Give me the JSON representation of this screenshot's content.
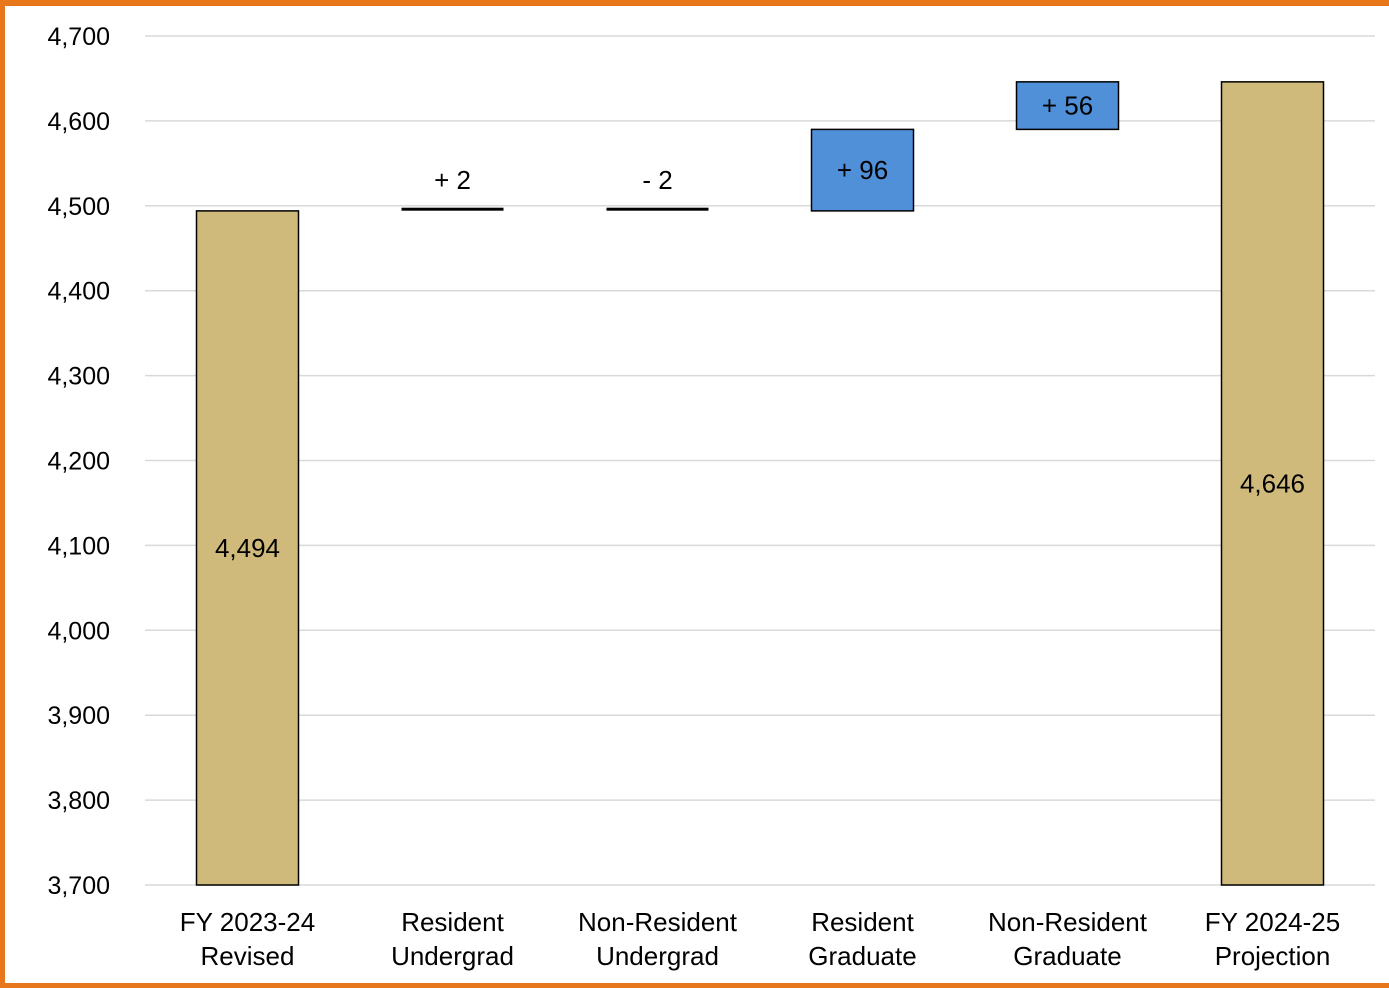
{
  "chart_data": {
    "type": "bar",
    "subtype": "waterfall",
    "title": "",
    "xlabel": "",
    "ylabel": "",
    "ylim": [
      3700,
      4700
    ],
    "yticks": [
      "4,700",
      "4,600",
      "4,500",
      "4,400",
      "4,300",
      "4,200",
      "4,100",
      "4,000",
      "3,900",
      "3,800",
      "3,700"
    ],
    "ytick_values": [
      4700,
      4600,
      4500,
      4400,
      4300,
      4200,
      4100,
      4000,
      3900,
      3800,
      3700
    ],
    "grid": true,
    "legend": "none",
    "categories": [
      [
        "FY 2023-24",
        "Revised"
      ],
      [
        "Resident",
        "Undergrad"
      ],
      [
        "Non-Resident",
        "Undergrad"
      ],
      [
        "Resident",
        "Graduate"
      ],
      [
        "Non-Resident",
        "Graduate"
      ],
      [
        "FY 2024-25",
        "Projection"
      ]
    ],
    "bars": [
      {
        "kind": "total",
        "start": 3700,
        "end": 4494,
        "label": "4,494",
        "color": "#cfb97b"
      },
      {
        "kind": "delta",
        "start": 4494,
        "end": 4496,
        "label": "+ 2",
        "color": "#4f90d9"
      },
      {
        "kind": "delta",
        "start": 4496,
        "end": 4494,
        "label": "- 2",
        "color": "#4f90d9"
      },
      {
        "kind": "delta",
        "start": 4494,
        "end": 4590,
        "label": "+ 96",
        "color": "#4f90d9"
      },
      {
        "kind": "delta",
        "start": 4590,
        "end": 4646,
        "label": "+ 56",
        "color": "#4f90d9"
      },
      {
        "kind": "total",
        "start": 3700,
        "end": 4646,
        "label": "4,646",
        "color": "#cfb97b"
      }
    ],
    "colors": {
      "frame": "#e8771c",
      "total": "#cfb97b",
      "increase": "#4f90d9",
      "grid": "#d9d9d9"
    }
  }
}
